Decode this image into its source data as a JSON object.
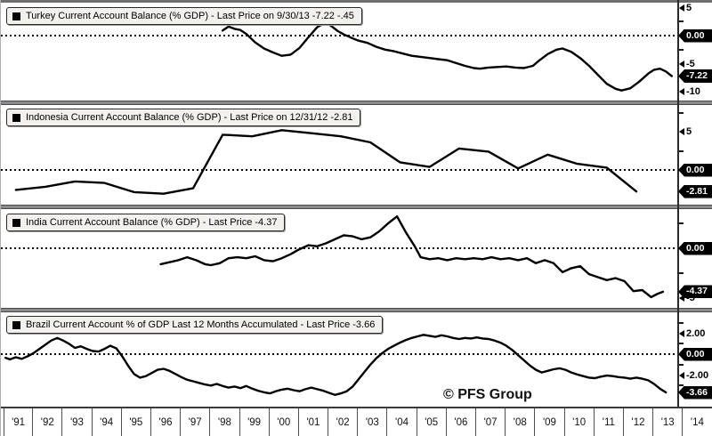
{
  "watermark": "© PFS Group",
  "x_axis": {
    "years": [
      "'91",
      "'92",
      "'93",
      "'94",
      "'95",
      "'96",
      "'97",
      "'98",
      "'99",
      "'00",
      "'01",
      "'02",
      "'03",
      "'04",
      "'05",
      "'06",
      "'07",
      "'08",
      "'09",
      "'10",
      "'11",
      "'12",
      "'13",
      "'14"
    ]
  },
  "chart_data": {
    "type": "line",
    "x_range_years": [
      1991,
      2015
    ],
    "line_color": "#000000",
    "zero_line_style": "dotted",
    "panels": [
      {
        "title": "Turkey Current Account Balance (% GDP) - Last Price on 9/30/13 -7.22  -.45",
        "series_name": "Turkey Current Account Balance (% GDP)",
        "last_price": -7.22,
        "ylim": [
          -11,
          6
        ],
        "axis_labels": [
          {
            "text": "5",
            "value": 5,
            "style": "plain"
          },
          {
            "text": "0.00",
            "value": 0,
            "style": "badge"
          },
          {
            "text": "-5",
            "value": -5,
            "style": "plain"
          },
          {
            "text": "-7.22",
            "value": -7.22,
            "style": "badge"
          },
          {
            "text": "-10",
            "value": -10,
            "style": "plain"
          }
        ],
        "minor_ticks": [
          2.5,
          -2.5
        ],
        "points": [
          [
            1998.4,
            0.9
          ],
          [
            1998.6,
            1.6
          ],
          [
            1998.8,
            1.2
          ],
          [
            1999.0,
            1.0
          ],
          [
            1999.2,
            0.3
          ],
          [
            1999.5,
            -1.2
          ],
          [
            1999.8,
            -2.3
          ],
          [
            2000.1,
            -3.0
          ],
          [
            2000.4,
            -3.6
          ],
          [
            2000.7,
            -3.4
          ],
          [
            2001.0,
            -2.2
          ],
          [
            2001.3,
            -0.3
          ],
          [
            2001.6,
            1.5
          ],
          [
            2001.9,
            2.4
          ],
          [
            2002.1,
            1.6
          ],
          [
            2002.3,
            0.8
          ],
          [
            2002.5,
            0.2
          ],
          [
            2002.8,
            -0.5
          ],
          [
            2003.0,
            -0.9
          ],
          [
            2003.3,
            -1.3
          ],
          [
            2003.6,
            -2.0
          ],
          [
            2003.9,
            -2.5
          ],
          [
            2004.2,
            -2.8
          ],
          [
            2004.5,
            -3.2
          ],
          [
            2004.8,
            -3.6
          ],
          [
            2005.1,
            -3.8
          ],
          [
            2005.4,
            -4.0
          ],
          [
            2005.7,
            -4.2
          ],
          [
            2006.0,
            -4.4
          ],
          [
            2006.3,
            -4.9
          ],
          [
            2006.6,
            -5.4
          ],
          [
            2006.9,
            -5.8
          ],
          [
            2007.1,
            -5.9
          ],
          [
            2007.4,
            -5.7
          ],
          [
            2007.7,
            -5.6
          ],
          [
            2008.0,
            -5.5
          ],
          [
            2008.3,
            -5.7
          ],
          [
            2008.6,
            -5.8
          ],
          [
            2008.9,
            -5.4
          ],
          [
            2009.1,
            -4.5
          ],
          [
            2009.4,
            -3.3
          ],
          [
            2009.7,
            -2.5
          ],
          [
            2009.9,
            -2.3
          ],
          [
            2010.2,
            -2.9
          ],
          [
            2010.5,
            -4.0
          ],
          [
            2010.8,
            -5.4
          ],
          [
            2011.1,
            -7.0
          ],
          [
            2011.4,
            -8.6
          ],
          [
            2011.7,
            -9.5
          ],
          [
            2011.9,
            -9.8
          ],
          [
            2012.2,
            -9.4
          ],
          [
            2012.5,
            -8.2
          ],
          [
            2012.8,
            -6.8
          ],
          [
            2013.0,
            -6.1
          ],
          [
            2013.2,
            -5.9
          ],
          [
            2013.4,
            -6.4
          ],
          [
            2013.6,
            -7.22
          ]
        ]
      },
      {
        "title": "Indonesia Current Account Balance (% GDP) - Last Price on 12/31/12 -2.81",
        "series_name": "Indonesia Current Account Balance (% GDP)",
        "last_price": -2.81,
        "ylim": [
          -4.5,
          8.5
        ],
        "axis_labels": [
          {
            "text": "5",
            "value": 5,
            "style": "plain"
          },
          {
            "text": "0.00",
            "value": 0,
            "style": "badge"
          },
          {
            "text": "-2.81",
            "value": -2.81,
            "style": "badge"
          }
        ],
        "minor_ticks": [
          7.5,
          2.5
        ],
        "points": [
          [
            1991,
            -2.6
          ],
          [
            1992,
            -2.2
          ],
          [
            1993,
            -1.5
          ],
          [
            1994,
            -1.7
          ],
          [
            1995,
            -2.9
          ],
          [
            1996,
            -3.1
          ],
          [
            1997,
            -2.4
          ],
          [
            1998,
            4.6
          ],
          [
            1999,
            4.4
          ],
          [
            2000,
            5.2
          ],
          [
            2001,
            4.8
          ],
          [
            2002,
            4.4
          ],
          [
            2003,
            3.6
          ],
          [
            2004,
            1.0
          ],
          [
            2005,
            0.4
          ],
          [
            2006,
            2.8
          ],
          [
            2007,
            2.4
          ],
          [
            2008,
            0.2
          ],
          [
            2009,
            2.0
          ],
          [
            2010,
            0.8
          ],
          [
            2011,
            0.3
          ],
          [
            2012,
            -2.81
          ]
        ]
      },
      {
        "title": "India Current Account Balance (% GDP) - Last Price -4.37",
        "series_name": "India Current Account Balance (% GDP)",
        "last_price": -4.37,
        "ylim": [
          -5.5,
          4
        ],
        "axis_labels": [
          {
            "text": "0.00",
            "value": 0,
            "style": "badge"
          },
          {
            "text": "-4.37",
            "value": -4.37,
            "style": "badge"
          },
          {
            "text": "-5",
            "value": -5,
            "style": "plain"
          }
        ],
        "minor_ticks": [
          2.5,
          -2.5
        ],
        "points": [
          [
            1996.3,
            -1.6
          ],
          [
            1996.6,
            -1.4
          ],
          [
            1996.9,
            -1.2
          ],
          [
            1997.2,
            -0.9
          ],
          [
            1997.5,
            -1.2
          ],
          [
            1997.8,
            -1.6
          ],
          [
            1998.0,
            -1.7
          ],
          [
            1998.3,
            -1.5
          ],
          [
            1998.6,
            -1.0
          ],
          [
            1998.9,
            -0.9
          ],
          [
            1999.2,
            -1.0
          ],
          [
            1999.5,
            -0.8
          ],
          [
            1999.8,
            -1.2
          ],
          [
            2000.1,
            -1.3
          ],
          [
            2000.4,
            -1.0
          ],
          [
            2000.7,
            -0.6
          ],
          [
            2001.0,
            -0.1
          ],
          [
            2001.3,
            0.3
          ],
          [
            2001.6,
            0.2
          ],
          [
            2001.9,
            0.5
          ],
          [
            2002.2,
            0.9
          ],
          [
            2002.5,
            1.3
          ],
          [
            2002.8,
            1.2
          ],
          [
            2003.1,
            0.9
          ],
          [
            2003.4,
            1.1
          ],
          [
            2003.7,
            1.7
          ],
          [
            2004.0,
            2.5
          ],
          [
            2004.3,
            3.2
          ],
          [
            2004.6,
            1.6
          ],
          [
            2004.9,
            0.2
          ],
          [
            2005.1,
            -0.9
          ],
          [
            2005.4,
            -1.1
          ],
          [
            2005.7,
            -1.0
          ],
          [
            2006.0,
            -1.2
          ],
          [
            2006.3,
            -1.0
          ],
          [
            2006.6,
            -1.1
          ],
          [
            2006.9,
            -1.0
          ],
          [
            2007.2,
            -1.1
          ],
          [
            2007.5,
            -0.9
          ],
          [
            2007.8,
            -1.1
          ],
          [
            2008.1,
            -1.0
          ],
          [
            2008.4,
            -1.2
          ],
          [
            2008.7,
            -1.0
          ],
          [
            2009.0,
            -1.5
          ],
          [
            2009.3,
            -1.2
          ],
          [
            2009.6,
            -1.5
          ],
          [
            2009.9,
            -2.4
          ],
          [
            2010.2,
            -2.0
          ],
          [
            2010.5,
            -1.8
          ],
          [
            2010.8,
            -2.6
          ],
          [
            2011.1,
            -2.9
          ],
          [
            2011.4,
            -3.2
          ],
          [
            2011.7,
            -3.0
          ],
          [
            2012.0,
            -3.3
          ],
          [
            2012.3,
            -4.3
          ],
          [
            2012.6,
            -4.2
          ],
          [
            2012.9,
            -4.9
          ],
          [
            2013.1,
            -4.6
          ],
          [
            2013.3,
            -4.37
          ]
        ]
      },
      {
        "title": "Brazil Current Account % of GDP Last 12 Months Accumulated - Last Price -3.66",
        "series_name": "Brazil Current Account % of GDP Last 12 Months Accumulated",
        "last_price": -3.66,
        "ylim": [
          -4.6,
          4.4
        ],
        "axis_labels": [
          {
            "text": "2.00",
            "value": 2,
            "style": "plain"
          },
          {
            "text": "0.00",
            "value": 0,
            "style": "badge"
          },
          {
            "text": "-2.00",
            "value": -2,
            "style": "plain"
          },
          {
            "text": "-3.66",
            "value": -3.66,
            "style": "badge"
          }
        ],
        "minor_ticks": [
          3.0,
          1.0,
          -1.0,
          -3.0
        ],
        "points": [
          [
            1991.05,
            -0.35
          ],
          [
            1991.2,
            -0.5
          ],
          [
            1991.4,
            -0.3
          ],
          [
            1991.6,
            -0.45
          ],
          [
            1991.8,
            -0.2
          ],
          [
            1992.0,
            0.1
          ],
          [
            1992.2,
            0.5
          ],
          [
            1992.4,
            0.9
          ],
          [
            1992.6,
            1.3
          ],
          [
            1992.8,
            1.55
          ],
          [
            1993.0,
            1.3
          ],
          [
            1993.2,
            1.0
          ],
          [
            1993.4,
            0.6
          ],
          [
            1993.6,
            0.75
          ],
          [
            1993.8,
            0.5
          ],
          [
            1994.0,
            0.3
          ],
          [
            1994.2,
            0.25
          ],
          [
            1994.4,
            0.5
          ],
          [
            1994.6,
            0.8
          ],
          [
            1994.8,
            0.55
          ],
          [
            1995.0,
            -0.2
          ],
          [
            1995.2,
            -1.1
          ],
          [
            1995.4,
            -1.9
          ],
          [
            1995.6,
            -2.25
          ],
          [
            1995.8,
            -2.1
          ],
          [
            1996.0,
            -1.8
          ],
          [
            1996.2,
            -1.5
          ],
          [
            1996.4,
            -1.4
          ],
          [
            1996.6,
            -1.6
          ],
          [
            1996.8,
            -1.9
          ],
          [
            1997.0,
            -2.2
          ],
          [
            1997.2,
            -2.45
          ],
          [
            1997.4,
            -2.6
          ],
          [
            1997.6,
            -2.75
          ],
          [
            1997.8,
            -2.9
          ],
          [
            1998.0,
            -3.0
          ],
          [
            1998.2,
            -2.85
          ],
          [
            1998.4,
            -3.05
          ],
          [
            1998.6,
            -3.2
          ],
          [
            1998.8,
            -3.1
          ],
          [
            1999.0,
            -3.25
          ],
          [
            1999.2,
            -3.05
          ],
          [
            1999.4,
            -3.3
          ],
          [
            1999.6,
            -3.5
          ],
          [
            1999.8,
            -3.65
          ],
          [
            2000.0,
            -3.75
          ],
          [
            2000.2,
            -3.55
          ],
          [
            2000.4,
            -3.4
          ],
          [
            2000.6,
            -3.3
          ],
          [
            2000.8,
            -3.45
          ],
          [
            2001.0,
            -3.55
          ],
          [
            2001.2,
            -3.35
          ],
          [
            2001.4,
            -3.2
          ],
          [
            2001.6,
            -3.35
          ],
          [
            2001.8,
            -3.5
          ],
          [
            2002.0,
            -3.7
          ],
          [
            2002.2,
            -3.9
          ],
          [
            2002.4,
            -3.75
          ],
          [
            2002.6,
            -3.55
          ],
          [
            2002.8,
            -3.1
          ],
          [
            2003.0,
            -2.4
          ],
          [
            2003.2,
            -1.7
          ],
          [
            2003.4,
            -1.0
          ],
          [
            2003.6,
            -0.4
          ],
          [
            2003.8,
            0.1
          ],
          [
            2004.0,
            0.5
          ],
          [
            2004.2,
            0.8
          ],
          [
            2004.4,
            1.1
          ],
          [
            2004.6,
            1.35
          ],
          [
            2004.8,
            1.55
          ],
          [
            2005.0,
            1.7
          ],
          [
            2005.2,
            1.85
          ],
          [
            2005.4,
            1.75
          ],
          [
            2005.6,
            1.65
          ],
          [
            2005.8,
            1.8
          ],
          [
            2006.0,
            1.7
          ],
          [
            2006.2,
            1.55
          ],
          [
            2006.4,
            1.45
          ],
          [
            2006.6,
            1.55
          ],
          [
            2006.8,
            1.5
          ],
          [
            2007.0,
            1.6
          ],
          [
            2007.2,
            1.5
          ],
          [
            2007.4,
            1.45
          ],
          [
            2007.6,
            1.3
          ],
          [
            2007.8,
            1.1
          ],
          [
            2008.0,
            0.8
          ],
          [
            2008.2,
            0.4
          ],
          [
            2008.4,
            -0.1
          ],
          [
            2008.6,
            -0.6
          ],
          [
            2008.8,
            -1.1
          ],
          [
            2009.0,
            -1.5
          ],
          [
            2009.2,
            -1.75
          ],
          [
            2009.4,
            -1.6
          ],
          [
            2009.6,
            -1.45
          ],
          [
            2009.8,
            -1.35
          ],
          [
            2010.0,
            -1.5
          ],
          [
            2010.2,
            -1.75
          ],
          [
            2010.4,
            -1.95
          ],
          [
            2010.6,
            -2.1
          ],
          [
            2010.8,
            -2.25
          ],
          [
            2011.0,
            -2.3
          ],
          [
            2011.2,
            -2.15
          ],
          [
            2011.4,
            -2.05
          ],
          [
            2011.6,
            -2.1
          ],
          [
            2011.8,
            -2.2
          ],
          [
            2012.0,
            -2.25
          ],
          [
            2012.2,
            -2.35
          ],
          [
            2012.4,
            -2.25
          ],
          [
            2012.6,
            -2.35
          ],
          [
            2012.8,
            -2.5
          ],
          [
            2013.0,
            -2.85
          ],
          [
            2013.2,
            -3.3
          ],
          [
            2013.4,
            -3.66
          ]
        ]
      }
    ]
  }
}
